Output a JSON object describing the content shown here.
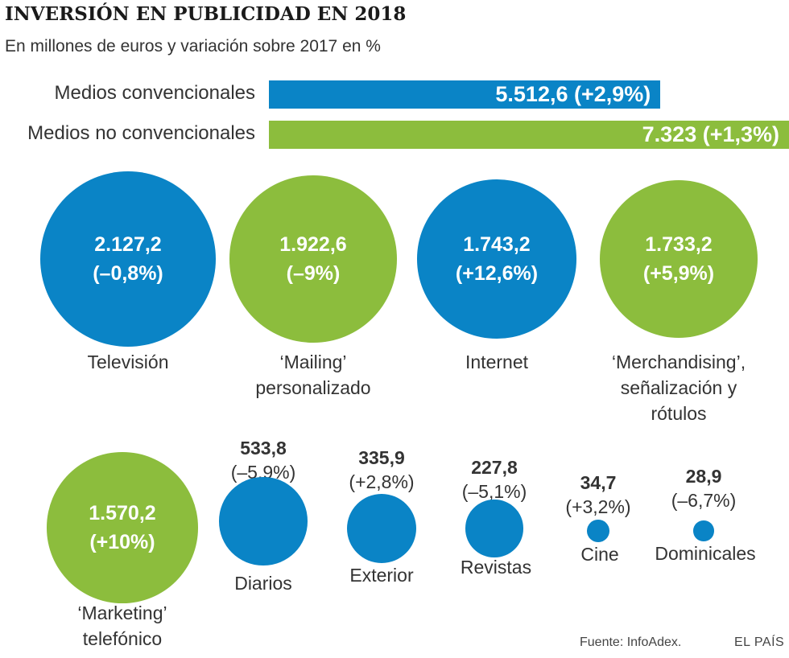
{
  "header": {
    "title": "INVERSIÓN EN PUBLICIDAD EN 2018",
    "subtitle": "En millones de euros y variación sobre 2017 en %"
  },
  "colors": {
    "blue": "#0a84c6",
    "green": "#8cbd3d"
  },
  "chart_data": [
    {
      "type": "bar",
      "orientation": "horizontal",
      "categories": [
        "Medios convencionales",
        "Medios no convencionales"
      ],
      "values": [
        5512.6,
        7323
      ],
      "labels": [
        "5.512,6 (+2,9%)",
        "7.323 (+1,3%)"
      ],
      "colors": [
        "#0a84c6",
        "#8cbd3d"
      ]
    },
    {
      "type": "bubble",
      "items": [
        {
          "name": "Televisión",
          "value": 2127.2,
          "value_label": "2.127,2",
          "change": "(–0,8%)",
          "color": "#0a84c6"
        },
        {
          "name": "‘Mailing’ personalizado",
          "name_lines": [
            "‘Mailing’",
            "personalizado"
          ],
          "value": 1922.6,
          "value_label": "1.922,6",
          "change": "(–9%)",
          "color": "#8cbd3d"
        },
        {
          "name": "Internet",
          "value": 1743.2,
          "value_label": "1.743,2",
          "change": "(+12,6%)",
          "color": "#0a84c6"
        },
        {
          "name": "‘Merchandising’, señalización y rótulos",
          "name_lines": [
            "‘Merchandising’,",
            "señalización y",
            "rótulos"
          ],
          "value": 1733.2,
          "value_label": "1.733,2",
          "change": "(+5,9%)",
          "color": "#8cbd3d"
        },
        {
          "name": "‘Marketing’ telefónico",
          "name_lines": [
            "‘Marketing’",
            "telefónico"
          ],
          "value": 1570.2,
          "value_label": "1.570,2",
          "change": "(+10%)",
          "color": "#8cbd3d"
        },
        {
          "name": "Diarios",
          "value": 533.8,
          "value_label": "533,8",
          "change": "(–5,9%)",
          "color": "#0a84c6"
        },
        {
          "name": "Exterior",
          "value": 335.9,
          "value_label": "335,9",
          "change": "(+2,8%)",
          "color": "#0a84c6"
        },
        {
          "name": "Revistas",
          "value": 227.8,
          "value_label": "227,8",
          "change": "(–5,1%)",
          "color": "#0a84c6"
        },
        {
          "name": "Cine",
          "value": 34.7,
          "value_label": "34,7",
          "change": "(+3,2%)",
          "color": "#0a84c6"
        },
        {
          "name": "Dominicales",
          "value": 28.9,
          "value_label": "28,9",
          "change": "(–6,7%)",
          "color": "#0a84c6"
        }
      ]
    }
  ],
  "footer": {
    "source": "Fuente:  InfoAdex.",
    "brand": "EL PAÍS"
  }
}
